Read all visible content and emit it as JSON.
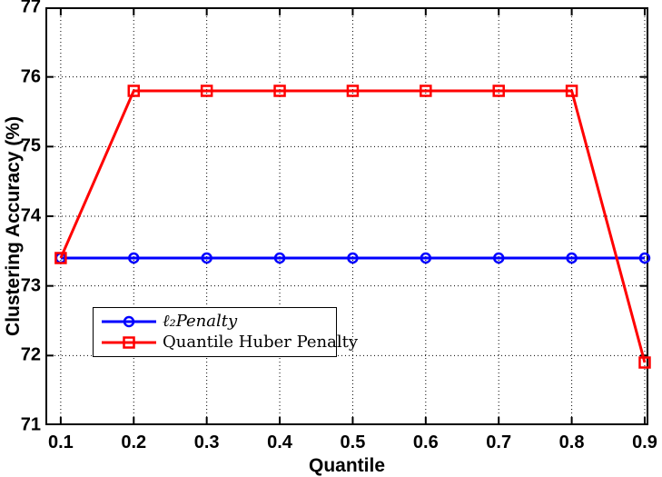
{
  "figure": {
    "background": "#ffffff",
    "axis_color": "#000000",
    "grid_style": "dotted"
  },
  "chart_data": {
    "type": "line",
    "title": "",
    "xlabel": "Quantile",
    "ylabel": "Clustering Accuracy (%)",
    "x": [
      0.1,
      0.2,
      0.3,
      0.4,
      0.5,
      0.6,
      0.7,
      0.8,
      0.9
    ],
    "x_tick_labels": [
      "0.1",
      "0.2",
      "0.3",
      "0.4",
      "0.5",
      "0.6",
      "0.7",
      "0.8",
      "0.9"
    ],
    "y_ticks": [
      71,
      72,
      73,
      74,
      75,
      76,
      77
    ],
    "y_tick_labels": [
      "71",
      "72",
      "73",
      "74",
      "75",
      "76",
      "77"
    ],
    "xlim": [
      0.079,
      0.905
    ],
    "ylim": [
      71,
      77
    ],
    "grid": "on",
    "legend_position": "lower-left-inside",
    "series": [
      {
        "name": "ℓ₂Penalty",
        "color": "#0000FF",
        "marker": "circle",
        "values": [
          73.4,
          73.4,
          73.4,
          73.4,
          73.4,
          73.4,
          73.4,
          73.4,
          73.4
        ]
      },
      {
        "name": "Quantile Huber Penalty",
        "color": "#FF0000",
        "marker": "square",
        "values": [
          73.4,
          75.8,
          75.8,
          75.8,
          75.8,
          75.8,
          75.8,
          75.8,
          71.9
        ]
      }
    ]
  }
}
